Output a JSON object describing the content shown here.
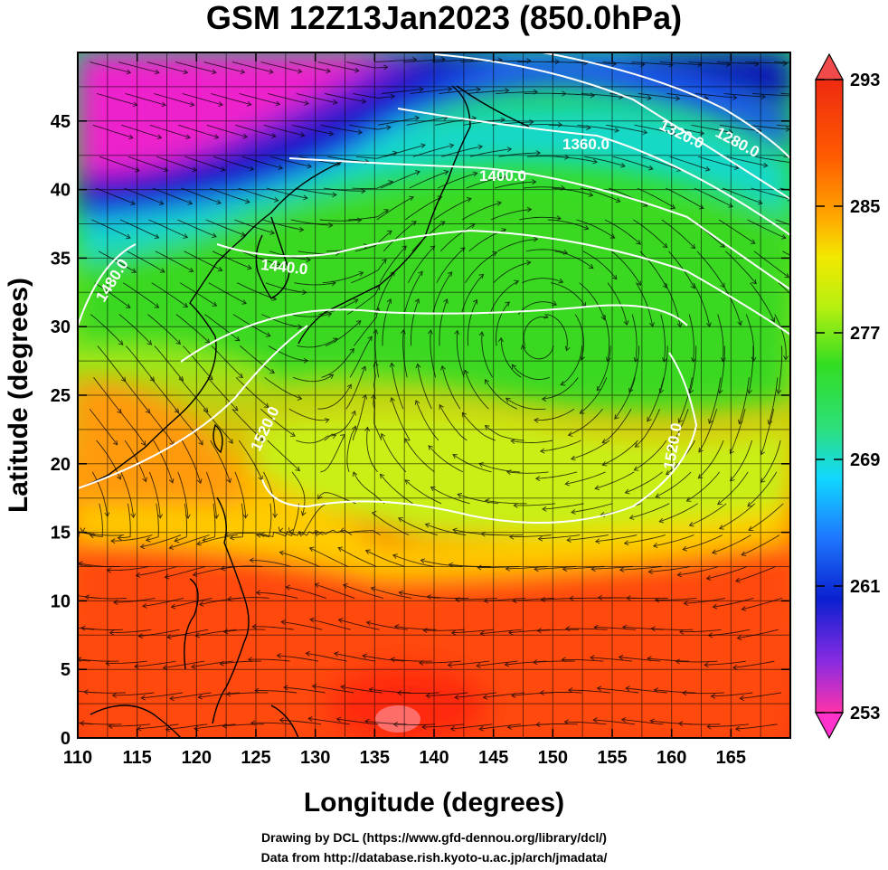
{
  "title": "GSM 12Z13Jan2023 (850.0hPa)",
  "x_axis": {
    "label": "Longitude (degrees)",
    "ticks": [
      "110",
      "115",
      "120",
      "125",
      "130",
      "135",
      "140",
      "145",
      "150",
      "155",
      "160",
      "165"
    ],
    "range": [
      110,
      170
    ]
  },
  "y_axis": {
    "label": "Latitude  (degrees)",
    "ticks": [
      "0",
      "5",
      "10",
      "15",
      "20",
      "25",
      "30",
      "35",
      "40",
      "45"
    ],
    "range": [
      0,
      50
    ]
  },
  "colorbar": {
    "ticks": [
      "293",
      "285",
      "277",
      "269",
      "261",
      "253"
    ],
    "range": [
      253,
      293
    ],
    "colors": [
      "#ff33aa",
      "#8a2be2",
      "#0a20d0",
      "#1e7bff",
      "#10d8ff",
      "#2de07a",
      "#33dd22",
      "#b6f010",
      "#f2e800",
      "#ffaa00",
      "#ff5a00",
      "#ee2a10"
    ]
  },
  "contours": [
    {
      "label": "1280.0",
      "color": "#ffffff"
    },
    {
      "label": "1320.0",
      "color": "#ffffff"
    },
    {
      "label": "1360.0",
      "color": "#ffffff"
    },
    {
      "label": "1400.0",
      "color": "#ffffff"
    },
    {
      "label": "1440.0",
      "color": "#ffffff"
    },
    {
      "label": "1480.0",
      "color": "#ffffff"
    },
    {
      "label": "1520.0",
      "color": "#ffffff"
    }
  ],
  "credits": {
    "line1": "Drawing by DCL (https://www.gfd-dennou.org/library/dcl/)",
    "line2": "Data from http://database.rish.kyoto-u.ac.jp/arch/jmadata/"
  }
}
